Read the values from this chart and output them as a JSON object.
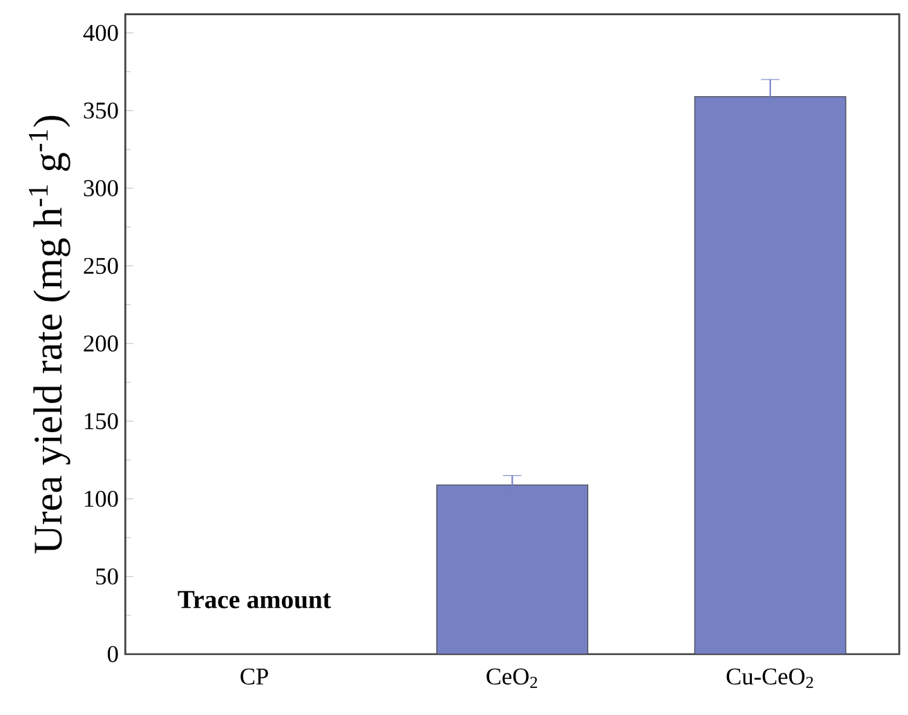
{
  "chart_data": {
    "type": "bar",
    "ylabel": "Urea yield rate (mg h$^{-1}$ g$^{-1}$)",
    "categories": [
      "CP",
      "CeO$_{2}$",
      "Cu-CeO$_{2}$"
    ],
    "values": [
      null,
      109,
      359
    ],
    "errors": [
      null,
      6,
      11
    ],
    "color": "#7681c4",
    "ylim": [
      0,
      412
    ],
    "yticks": [
      0,
      50,
      100,
      150,
      200,
      250,
      300,
      350,
      400
    ],
    "annotations": [
      "Trace amount"
    ],
    "grid": false
  }
}
